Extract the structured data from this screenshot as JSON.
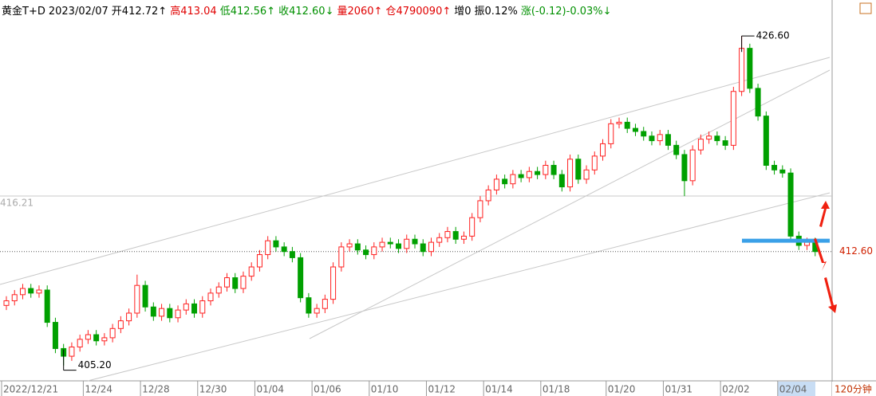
{
  "header": {
    "symbol": "黄金T+D",
    "date": "2023/02/07",
    "open": "开412.72↑",
    "high": "高413.04",
    "low": "低412.56↑",
    "close": "收412.60↓",
    "volume": "量2060↑",
    "position": "仓4790090↑",
    "increase": "增0",
    "amplitude": "振0.12%",
    "change": "涨(-0.12)-0.03%↓"
  },
  "chart_data": {
    "type": "candlestick",
    "period": "120分钟",
    "categories": [
      "2022/12/21",
      null,
      null,
      null,
      null,
      null,
      null,
      null,
      null,
      null,
      "12/24",
      null,
      null,
      null,
      null,
      null,
      null,
      "12/28",
      null,
      null,
      null,
      null,
      null,
      null,
      "12/30",
      null,
      null,
      null,
      null,
      null,
      null,
      "01/04",
      null,
      null,
      null,
      null,
      null,
      null,
      "01/06",
      null,
      null,
      null,
      null,
      null,
      null,
      "01/10",
      null,
      null,
      null,
      null,
      null,
      null,
      "01/12",
      null,
      null,
      null,
      null,
      null,
      null,
      "01/14",
      null,
      null,
      null,
      null,
      null,
      null,
      "01/18",
      null,
      null,
      null,
      null,
      null,
      null,
      null,
      "01/20",
      null,
      null,
      null,
      null,
      null,
      null,
      "01/31",
      null,
      null,
      null,
      null,
      null,
      null,
      "02/02",
      null,
      null,
      null,
      null,
      null,
      null,
      "02/04",
      null,
      null,
      null,
      null
    ],
    "up_color": "#ff2020",
    "down_color": "#00a000",
    "ylim": [
      404.2,
      427.8
    ],
    "open": [
      409.1,
      409.4,
      409.8,
      410.2,
      409.9,
      410.1,
      408.0,
      406.3,
      405.8,
      406.4,
      406.9,
      407.2,
      406.8,
      407.0,
      407.6,
      408.1,
      408.6,
      410.4,
      409.0,
      408.4,
      408.9,
      408.3,
      408.8,
      409.2,
      408.6,
      409.4,
      409.9,
      410.3,
      410.9,
      410.2,
      411.0,
      411.6,
      412.4,
      413.3,
      412.9,
      412.6,
      412.2,
      409.6,
      408.6,
      408.9,
      409.5,
      411.6,
      412.9,
      413.1,
      412.7,
      412.4,
      412.9,
      413.2,
      413.1,
      412.8,
      413.4,
      413.1,
      412.6,
      413.2,
      413.5,
      413.9,
      413.4,
      413.6,
      414.8,
      415.9,
      416.6,
      417.3,
      417.0,
      417.6,
      417.4,
      417.8,
      417.6,
      418.2,
      417.6,
      416.8,
      418.6,
      417.3,
      417.9,
      418.8,
      419.6,
      420.9,
      421.0,
      420.6,
      420.4,
      420.1,
      419.8,
      420.2,
      419.5,
      418.9,
      417.2,
      419.2,
      419.9,
      420.1,
      419.8,
      419.5,
      423.0,
      425.8,
      423.2,
      421.4,
      418.2,
      417.9,
      417.7,
      413.6,
      413.0,
      413.2
    ],
    "high": [
      409.7,
      410.1,
      410.5,
      410.5,
      410.4,
      410.4,
      408.3,
      406.6,
      406.7,
      407.2,
      407.5,
      407.5,
      407.3,
      407.9,
      408.4,
      408.9,
      411.1,
      410.7,
      409.3,
      409.2,
      409.2,
      409.1,
      409.5,
      409.5,
      409.7,
      410.2,
      410.6,
      411.2,
      411.2,
      411.3,
      411.9,
      412.7,
      413.6,
      413.6,
      413.2,
      412.9,
      412.5,
      409.9,
      409.2,
      409.8,
      411.9,
      413.2,
      413.4,
      413.4,
      413.0,
      413.2,
      413.5,
      413.5,
      413.4,
      413.7,
      413.7,
      413.4,
      413.5,
      413.8,
      414.2,
      414.2,
      413.9,
      415.1,
      416.2,
      416.9,
      417.6,
      417.6,
      417.9,
      417.9,
      418.1,
      418.1,
      418.5,
      418.5,
      417.9,
      418.9,
      418.9,
      418.2,
      419.1,
      419.9,
      421.2,
      421.3,
      421.3,
      420.9,
      420.7,
      420.4,
      420.5,
      420.5,
      419.8,
      419.2,
      419.5,
      420.2,
      420.4,
      420.4,
      420.1,
      423.3,
      426.6,
      426.1,
      423.5,
      421.7,
      418.5,
      418.2,
      418.0,
      413.9,
      413.5,
      413.5
    ],
    "low": [
      408.8,
      409.1,
      409.5,
      409.6,
      409.6,
      407.7,
      406.0,
      405.2,
      405.5,
      406.1,
      406.6,
      406.5,
      406.5,
      406.7,
      407.3,
      407.8,
      408.3,
      408.7,
      408.1,
      408.1,
      408.0,
      408.0,
      408.5,
      408.3,
      408.3,
      409.1,
      409.6,
      410.0,
      409.9,
      409.9,
      410.7,
      411.3,
      412.1,
      412.6,
      412.3,
      411.9,
      409.3,
      408.3,
      408.3,
      408.6,
      409.2,
      411.3,
      412.6,
      412.4,
      412.1,
      412.1,
      412.6,
      412.8,
      412.5,
      412.5,
      412.8,
      412.3,
      412.3,
      412.9,
      413.2,
      413.1,
      413.1,
      413.3,
      414.5,
      415.6,
      416.3,
      416.7,
      416.7,
      417.1,
      417.1,
      417.3,
      417.3,
      417.3,
      416.5,
      416.5,
      417.0,
      417.0,
      417.6,
      418.5,
      419.3,
      420.6,
      420.3,
      420.1,
      419.8,
      419.5,
      419.5,
      419.2,
      418.6,
      416.2,
      416.9,
      418.9,
      419.6,
      419.5,
      419.2,
      419.2,
      422.7,
      422.9,
      421.1,
      417.9,
      417.6,
      417.4,
      413.3,
      412.7,
      412.7,
      412.3
    ],
    "close": [
      409.4,
      409.8,
      410.2,
      409.9,
      410.1,
      408.0,
      406.3,
      405.8,
      406.4,
      406.9,
      407.2,
      406.8,
      407.0,
      407.6,
      408.1,
      408.6,
      410.4,
      409.0,
      408.4,
      408.9,
      408.3,
      408.8,
      409.2,
      408.6,
      409.4,
      409.9,
      410.3,
      410.9,
      410.2,
      411.0,
      411.6,
      412.4,
      413.3,
      412.9,
      412.6,
      412.2,
      409.6,
      408.6,
      408.9,
      409.5,
      411.6,
      412.9,
      413.1,
      412.7,
      412.4,
      412.9,
      413.2,
      413.1,
      412.8,
      413.4,
      413.1,
      412.6,
      413.2,
      413.5,
      413.9,
      413.4,
      413.6,
      414.8,
      415.9,
      416.6,
      417.3,
      417.0,
      417.6,
      417.4,
      417.8,
      417.6,
      418.2,
      417.6,
      416.8,
      418.6,
      417.3,
      417.9,
      418.8,
      419.6,
      420.9,
      421.0,
      420.6,
      420.4,
      420.1,
      419.8,
      420.2,
      419.5,
      418.9,
      417.2,
      419.2,
      419.9,
      420.1,
      419.8,
      419.5,
      423.0,
      425.8,
      423.2,
      421.4,
      418.2,
      417.9,
      417.7,
      413.6,
      413.0,
      413.2,
      412.6
    ],
    "high_marker": {
      "value": 426.6,
      "label": "426.60"
    },
    "low_marker": {
      "value": 405.2,
      "label": "405.20"
    },
    "reference_line": 416.21,
    "last_price": {
      "value": 412.6,
      "label": "412.60"
    },
    "support_line": {
      "value": 413.3,
      "color": "#3aa0e8"
    }
  }
}
